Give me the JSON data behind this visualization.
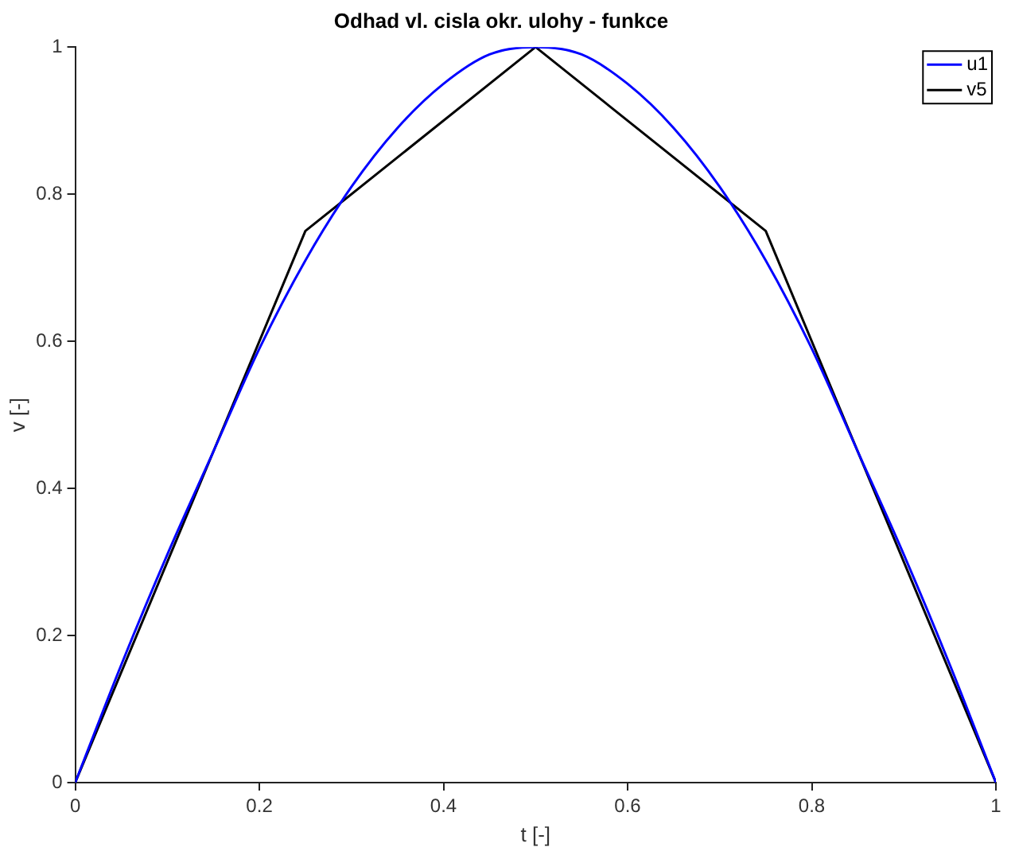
{
  "chart_data": {
    "type": "line",
    "title": "Odhad vl. cisla okr. ulohy - funkce",
    "xlabel": "t [-]",
    "ylabel": "v [-]",
    "xlim": [
      0,
      1
    ],
    "xticks": [
      0,
      0.2,
      0.4,
      0.6,
      0.8,
      1
    ],
    "ylim": [
      0,
      1
    ],
    "yticks": [
      0,
      0.2,
      0.4,
      0.6,
      0.8,
      1
    ],
    "grid": false,
    "legend": "top right",
    "marker": "none",
    "line_style": "solid",
    "series": [
      {
        "name": "u1",
        "color": "#0000ff",
        "x": [
          0,
          0.05,
          0.1,
          0.15,
          0.2,
          0.25,
          0.3,
          0.35,
          0.4,
          0.45,
          0.5,
          0.55,
          0.6,
          0.65,
          0.7,
          0.75,
          0.8,
          0.85,
          0.9,
          0.95,
          1
        ],
        "values": [
          0,
          0.16,
          0.31,
          0.45,
          0.59,
          0.71,
          0.81,
          0.89,
          0.95,
          0.99,
          1,
          0.99,
          0.95,
          0.89,
          0.81,
          0.71,
          0.59,
          0.45,
          0.31,
          0.16,
          0
        ]
      },
      {
        "name": "v5",
        "color": "#000000",
        "x": [
          0,
          0.25,
          0.5,
          0.75,
          1
        ],
        "values": [
          0,
          0.75,
          1,
          0.75,
          0
        ]
      }
    ]
  }
}
